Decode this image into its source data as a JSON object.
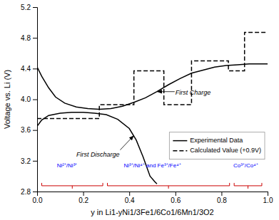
{
  "chart_data": {
    "type": "line",
    "xlabel": "y in Li1-yNi1/3Fe1/6Co1/6Mn1/3O2",
    "ylabel": "Voltage vs. Li (V)",
    "xlim": [
      0.0,
      1.0
    ],
    "ylim": [
      2.8,
      5.2
    ],
    "xticks": [
      {
        "value": 0.0,
        "label": "0.0"
      },
      0.2,
      0.4,
      0.6,
      0.8,
      {
        "value": 1.0,
        "label": "1.0"
      }
    ],
    "yticks": [
      2.8,
      3.2,
      3.6,
      {
        "value": 4.0,
        "label": "4.0"
      },
      4.4,
      4.8,
      5.2
    ],
    "grid": false,
    "legend": "lower right",
    "series": [
      {
        "name": "Experimental Data",
        "color": "#000000",
        "line_style": "solid",
        "x": [
          0.0,
          0.02,
          0.05,
          0.08,
          0.12,
          0.17,
          0.22,
          0.27,
          0.32,
          0.37,
          0.42,
          0.47,
          0.52,
          0.57,
          0.62,
          0.67,
          0.72,
          0.77,
          0.82,
          0.87,
          0.92,
          0.97,
          1.0,
          null,
          0.0,
          0.02,
          0.05,
          0.1,
          0.15,
          0.2,
          0.25,
          0.3,
          0.35,
          0.4,
          0.43,
          0.46,
          0.49,
          0.51,
          0.52
        ],
        "values": [
          4.42,
          4.3,
          4.15,
          4.03,
          3.95,
          3.9,
          3.88,
          3.87,
          3.88,
          3.91,
          3.96,
          4.02,
          4.1,
          4.19,
          4.27,
          4.34,
          4.38,
          4.42,
          4.44,
          4.45,
          4.46,
          4.46,
          4.46,
          null,
          3.65,
          3.73,
          3.79,
          3.82,
          3.83,
          3.83,
          3.82,
          3.8,
          3.74,
          3.62,
          3.47,
          3.25,
          3.0,
          2.93,
          2.9
        ]
      },
      {
        "name": "Calculated Value (+0.9V)",
        "color": "#000000",
        "line_style": "dashed",
        "x": [
          0.0,
          0.27,
          0.27,
          0.42,
          0.42,
          0.55,
          0.55,
          0.67,
          0.67,
          0.83,
          0.83,
          0.9,
          0.9,
          1.0
        ],
        "values": [
          3.75,
          3.75,
          3.93,
          3.93,
          4.37,
          4.37,
          3.93,
          3.93,
          4.5,
          4.5,
          4.37,
          4.37,
          4.87,
          4.87
        ]
      }
    ],
    "annotations": [
      {
        "text": "First Charge",
        "x": 0.52,
        "y": 4.1,
        "text_x": 0.6,
        "text_y": 4.08
      },
      {
        "text": "First Discharge",
        "x": 0.42,
        "y": 3.53,
        "text_x": 0.17,
        "text_y": 3.28
      },
      {
        "text": "Ni²⁺/Ni³⁺",
        "x": 0.13,
        "y": 3.1,
        "color": "blue"
      },
      {
        "text": "Ni³⁺/Ni⁴⁺ and Fe³⁺/Fe⁴⁺",
        "x": 0.5,
        "y": 3.1,
        "color": "blue"
      },
      {
        "text": "Co³⁺/Co⁴⁺",
        "x": 0.905,
        "y": 3.1,
        "color": "blue"
      }
    ],
    "braces": [
      {
        "x1": 0.02,
        "x2": 0.285,
        "y": 2.875,
        "color": "#cc0000"
      },
      {
        "x1": 0.305,
        "x2": 0.835,
        "y": 2.875,
        "color": "#cc0000"
      },
      {
        "x1": 0.855,
        "x2": 0.975,
        "y": 2.875,
        "color": "#cc0000"
      }
    ]
  }
}
